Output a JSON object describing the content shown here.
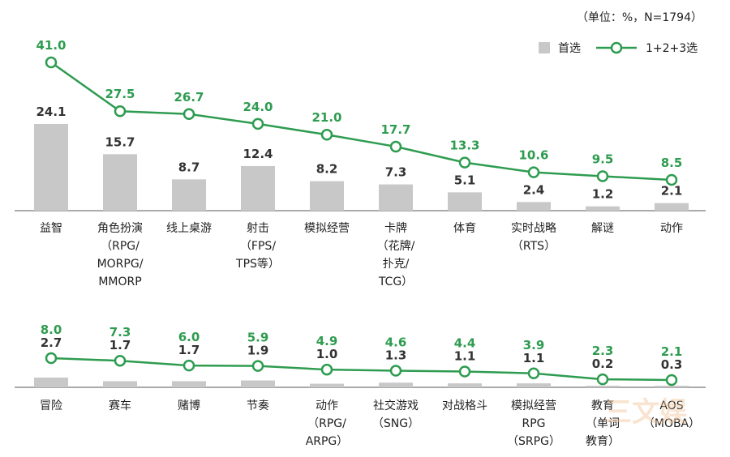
{
  "unit_note": "（单位：%，N=1794）",
  "colors": {
    "bar": "#c8c8c8",
    "line": "#2e9c50",
    "bar_label": "#333333",
    "axis": "#555555"
  },
  "watermark_text": "三文娱",
  "chart_data": [
    {
      "type": "bar",
      "series": [
        {
          "name": "首选",
          "type": "bar",
          "values": [
            24.1,
            15.7,
            8.7,
            12.4,
            8.2,
            7.3,
            5.1,
            2.4,
            1.2,
            2.1
          ]
        },
        {
          "name": "1+2+3选",
          "type": "line",
          "values": [
            41.0,
            27.5,
            26.7,
            24.0,
            21.0,
            17.7,
            13.3,
            10.6,
            9.5,
            8.5
          ]
        }
      ],
      "categories": [
        [
          "益智"
        ],
        [
          "角色扮演",
          "（RPG/",
          "MORPG/",
          "MMORP"
        ],
        [
          "线上桌游"
        ],
        [
          "射击",
          "（FPS/",
          "TPS等）"
        ],
        [
          "模拟经营"
        ],
        [
          "卡牌",
          "（花牌/",
          "扑克/",
          "TCG）"
        ],
        [
          "体育"
        ],
        [
          "实时战略",
          "（RTS）"
        ],
        [
          "解谜"
        ],
        [
          "动作"
        ]
      ],
      "ylim": [
        0,
        45
      ]
    },
    {
      "type": "bar",
      "series": [
        {
          "name": "首选",
          "type": "bar",
          "values": [
            2.7,
            1.7,
            1.7,
            1.9,
            1.0,
            1.3,
            1.1,
            1.1,
            0.2,
            0.3
          ]
        },
        {
          "name": "1+2+3选",
          "type": "line",
          "values": [
            8.0,
            7.3,
            6.0,
            5.9,
            4.9,
            4.6,
            4.4,
            3.9,
            2.3,
            2.1
          ]
        }
      ],
      "categories": [
        [
          "冒险"
        ],
        [
          "赛车"
        ],
        [
          "赌博"
        ],
        [
          "节奏"
        ],
        [
          "动作",
          "（RPG/",
          "ARPG）"
        ],
        [
          "社交游戏",
          "（SNG）"
        ],
        [
          "对战格斗"
        ],
        [
          "模拟经营",
          "RPG",
          "（SRPG）"
        ],
        [
          "教育",
          "（单词",
          "教育）"
        ],
        [
          "AOS",
          "（MOBA）"
        ]
      ],
      "ylim": [
        0,
        45
      ]
    }
  ]
}
